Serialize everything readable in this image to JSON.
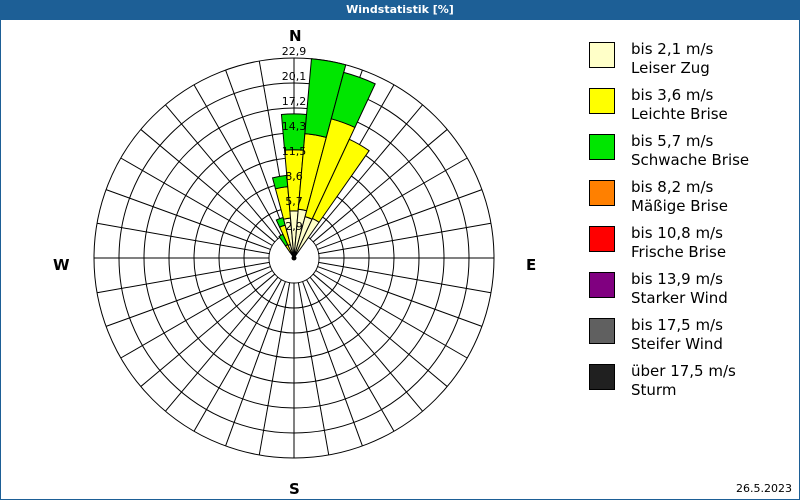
{
  "title": "Windstatistik [%]",
  "compass": {
    "n": "N",
    "e": "E",
    "s": "S",
    "w": "W"
  },
  "date": "26.5.2023",
  "legend": [
    {
      "range": "bis 2,1 m/s",
      "name": "Leiser Zug",
      "color": "#ffffc8"
    },
    {
      "range": "bis 3,6 m/s",
      "name": "Leichte Brise",
      "color": "#ffff00"
    },
    {
      "range": "bis 5,7 m/s",
      "name": "Schwache Brise",
      "color": "#00e600"
    },
    {
      "range": "bis 8,2 m/s",
      "name": "Mäßige Brise",
      "color": "#ff8000"
    },
    {
      "range": "bis 10,8 m/s",
      "name": "Frische Brise",
      "color": "#ff0000"
    },
    {
      "range": "bis 13,9 m/s",
      "name": "Starker Wind",
      "color": "#800080"
    },
    {
      "range": "bis 17,5 m/s",
      "name": "Steifer Wind",
      "color": "#606060"
    },
    {
      "range": "über 17,5 m/s",
      "name": "Sturm",
      "color": "#202020"
    }
  ],
  "chart_data": {
    "type": "polar-bar (wind rose)",
    "title": "Windstatistik [%]",
    "radial_ticks": [
      "2,9",
      "5,7",
      "8,6",
      "11,5",
      "14,3",
      "17,2",
      "20,1",
      "22,9"
    ],
    "rmax": 22.9,
    "sector_width_deg": 10,
    "direction_labels": [
      "N",
      "E",
      "S",
      "W"
    ],
    "series_stack_note": "cumulative outer radius (%) per speed class",
    "sectors": [
      {
        "dir": 330,
        "cum": [
          0.8,
          1.7,
          3.0
        ]
      },
      {
        "dir": 340,
        "cum": [
          1.6,
          3.9,
          4.8
        ]
      },
      {
        "dir": 350,
        "cum": [
          4.6,
          8.2,
          9.5
        ]
      },
      {
        "dir": 0,
        "cum": [
          5.4,
          12.4,
          16.5
        ]
      },
      {
        "dir": 10,
        "cum": [
          5.6,
          14.3,
          22.9
        ]
      },
      {
        "dir": 20,
        "cum": [
          4.9,
          16.5,
          22.0
        ]
      },
      {
        "dir": 30,
        "cum": [
          5.0,
          15.0,
          15.0
        ]
      }
    ],
    "series": [
      {
        "name": "bis 2,1 m/s Leiser Zug",
        "values_by_dir": {
          "330": 0.8,
          "340": 1.6,
          "350": 4.6,
          "0": 5.4,
          "10": 5.6,
          "20": 4.9,
          "30": 5.0
        }
      },
      {
        "name": "bis 3,6 m/s Leichte Brise",
        "values_by_dir": {
          "330": 0.9,
          "340": 2.3,
          "350": 3.6,
          "0": 7.0,
          "10": 8.7,
          "20": 11.6,
          "30": 10.0
        }
      },
      {
        "name": "bis 5,7 m/s Schwache Brise",
        "values_by_dir": {
          "330": 1.3,
          "340": 0.9,
          "350": 1.3,
          "0": 4.1,
          "10": 8.6,
          "20": 5.5,
          "30": 0.0
        }
      }
    ]
  }
}
